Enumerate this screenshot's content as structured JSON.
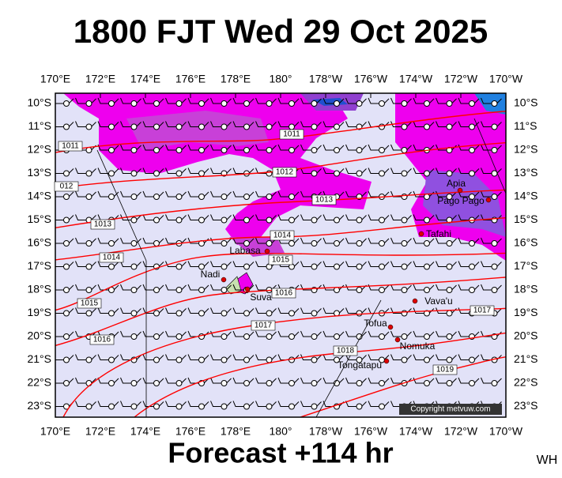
{
  "title": "1800 FJT Wed 29 Oct 2025",
  "subtitle": "Forecast +114 hr",
  "corner_tag": "WH",
  "map": {
    "longitude_labels": [
      "170°E",
      "172°E",
      "174°E",
      "176°E",
      "178°E",
      "180°",
      "178°W",
      "176°W",
      "174°W",
      "172°W",
      "170°W"
    ],
    "latitude_labels": [
      "10°S",
      "11°S",
      "12°S",
      "13°S",
      "14°S",
      "15°S",
      "16°S",
      "17°S",
      "18°S",
      "19°S",
      "20°S",
      "21°S",
      "22°S",
      "23°S"
    ],
    "isobar_labels": [
      "1011",
      "1011",
      "012",
      "1012",
      "1013",
      "1013",
      "1014",
      "1014",
      "1015",
      "1015",
      "1016",
      "1016",
      "1017",
      "1017",
      "1018",
      "1019"
    ],
    "places": [
      "Apia",
      "Pago Pago",
      "Tafahi",
      "Labasa",
      "Nadi",
      "Suva",
      "Vava'u",
      "Tofua",
      "Nomuka",
      "Tongatapu"
    ],
    "copyright": "Copyright metvuw.com"
  }
}
